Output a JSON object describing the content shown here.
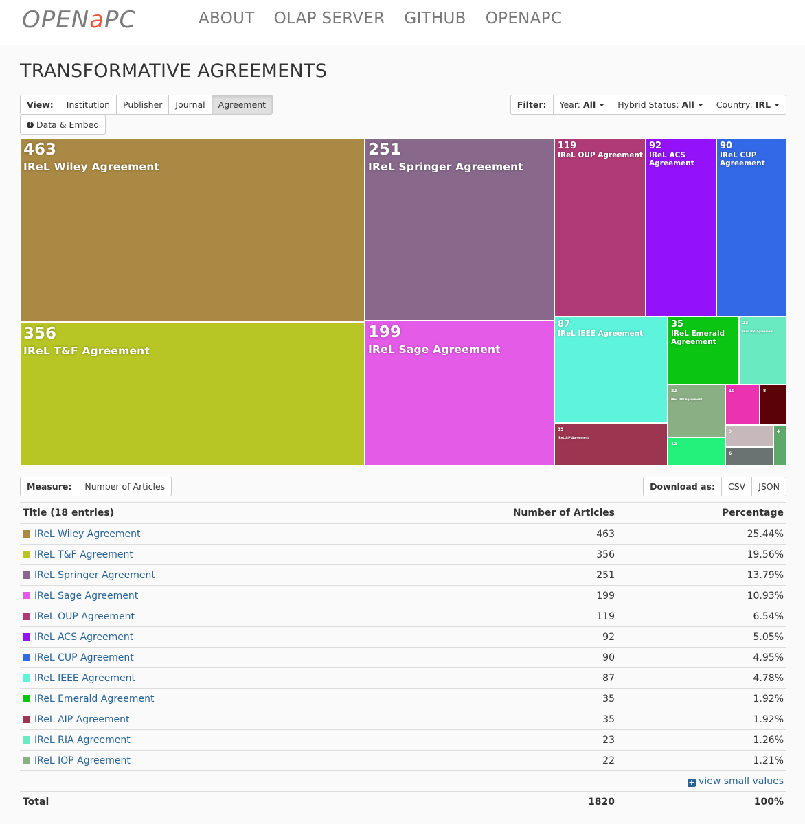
{
  "nav": {
    "logo_part1": "OPEN ",
    "logo_part2": "a",
    "logo_part3": "PC",
    "items": [
      "ABOUT",
      "OLAP SERVER",
      "GITHUB",
      "OPENAPC"
    ]
  },
  "title": "TRANSFORMATIVE AGREEMENTS",
  "view": {
    "label": "View:",
    "options": [
      "Institution",
      "Publisher",
      "Journal",
      "Agreement"
    ],
    "active": "Agreement"
  },
  "data_embed_label": "Data & Embed",
  "filter": {
    "label": "Filter:",
    "year_label": "Year:",
    "year_value": "All",
    "hybrid_label": "Hybrid Status:",
    "hybrid_value": "All",
    "country_label": "Country:",
    "country_value": "IRL"
  },
  "measure": {
    "label": "Measure:",
    "value": "Number of Articles"
  },
  "download": {
    "label": "Download as:",
    "csv": "CSV",
    "json": "JSON"
  },
  "chart_data": {
    "type": "treemap",
    "items": [
      {
        "name": "IReL Wiley Agreement",
        "value": 463,
        "color": "#aa8944"
      },
      {
        "name": "IReL T&F Agreement",
        "value": 356,
        "color": "#b7c624"
      },
      {
        "name": "IReL Springer Agreement",
        "value": 251,
        "color": "#88698b"
      },
      {
        "name": "IReL Sage Agreement",
        "value": 199,
        "color": "#e35be6"
      },
      {
        "name": "IReL OUP Agreement",
        "value": 119,
        "color": "#b03a77"
      },
      {
        "name": "IReL ACS Agreement",
        "value": 92,
        "color": "#9412fa"
      },
      {
        "name": "IReL CUP Agreement",
        "value": 90,
        "color": "#3369e6"
      },
      {
        "name": "IReL IEEE Agreement",
        "value": 87,
        "color": "#5ef3db"
      },
      {
        "name": "IReL Emerald Agreement",
        "value": 35,
        "color": "#0ac512"
      },
      {
        "name": "IReL AIP Agreement",
        "value": 35,
        "color": "#9c3650"
      },
      {
        "name": "IReL RIA Agreement",
        "value": 23,
        "color": "#6aeac0"
      },
      {
        "name": "IReL IOP Agreement",
        "value": 22,
        "color": "#8baf85"
      },
      {
        "name": "",
        "value": 10,
        "color": "#eb32b0"
      },
      {
        "name": "",
        "value": 8,
        "color": "#5b0208"
      },
      {
        "name": "",
        "value": 12,
        "color": "#24f07c"
      },
      {
        "name": "",
        "value": 9,
        "color": "#c7b8bc"
      },
      {
        "name": "",
        "value": 6,
        "color": "#6b7372"
      },
      {
        "name": "",
        "value": 4,
        "color": "#5fa86b"
      }
    ]
  },
  "table": {
    "headers": [
      "Title (18 entries)",
      "Number of Articles",
      "Percentage"
    ],
    "rows": [
      {
        "name": "IReL Wiley Agreement",
        "count": "463",
        "pct": "25.44%",
        "color": "#aa8944"
      },
      {
        "name": "IReL T&F Agreement",
        "count": "356",
        "pct": "19.56%",
        "color": "#b7c624"
      },
      {
        "name": "IReL Springer Agreement",
        "count": "251",
        "pct": "13.79%",
        "color": "#88698b"
      },
      {
        "name": "IReL Sage Agreement",
        "count": "199",
        "pct": "10.93%",
        "color": "#e35be6"
      },
      {
        "name": "IReL OUP Agreement",
        "count": "119",
        "pct": "6.54%",
        "color": "#b03a77"
      },
      {
        "name": "IReL ACS Agreement",
        "count": "92",
        "pct": "5.05%",
        "color": "#9412fa"
      },
      {
        "name": "IReL CUP Agreement",
        "count": "90",
        "pct": "4.95%",
        "color": "#3369e6"
      },
      {
        "name": "IReL IEEE Agreement",
        "count": "87",
        "pct": "4.78%",
        "color": "#5ef3db"
      },
      {
        "name": "IReL Emerald Agreement",
        "count": "35",
        "pct": "1.92%",
        "color": "#0ac512"
      },
      {
        "name": "IReL AIP Agreement",
        "count": "35",
        "pct": "1.92%",
        "color": "#9c3650"
      },
      {
        "name": "IReL RIA Agreement",
        "count": "23",
        "pct": "1.26%",
        "color": "#6aeac0"
      },
      {
        "name": "IReL IOP Agreement",
        "count": "22",
        "pct": "1.21%",
        "color": "#8baf85"
      }
    ],
    "view_small_label": "view small values",
    "total_label": "Total",
    "total_count": "1820",
    "total_pct": "100%"
  }
}
